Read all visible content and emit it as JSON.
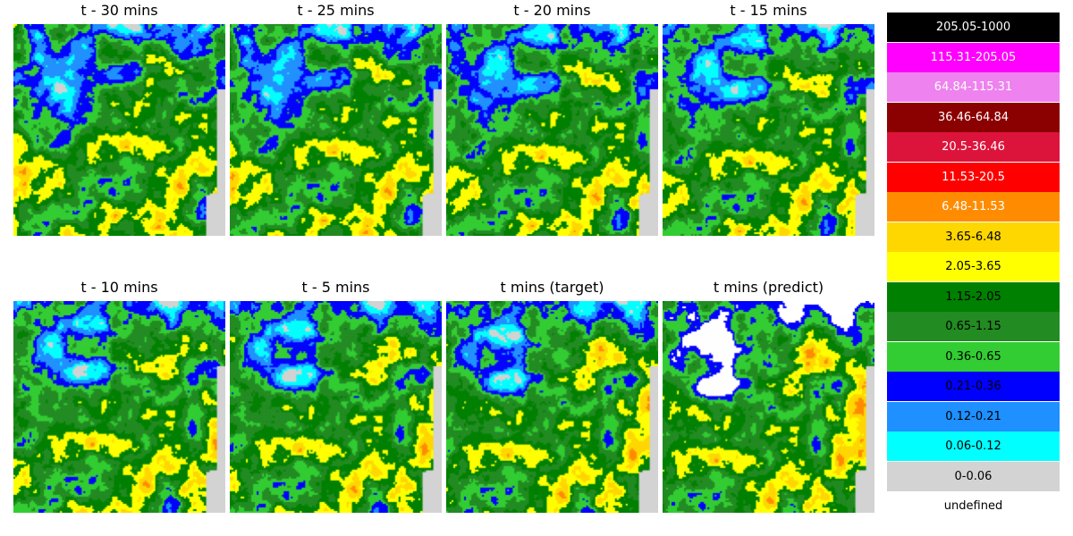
{
  "panels": [
    {
      "title": "t - 30 mins",
      "variant": 0
    },
    {
      "title": "t - 25 mins",
      "variant": 1
    },
    {
      "title": "t - 20 mins",
      "variant": 2
    },
    {
      "title": "t - 15 mins",
      "variant": 3
    },
    {
      "title": "t - 10 mins",
      "variant": 4
    },
    {
      "title": "t - 5 mins",
      "variant": 5
    },
    {
      "title": "t mins (target)",
      "variant": 6
    },
    {
      "title": "t mins (predict)",
      "variant": 7,
      "predict": true
    }
  ],
  "legend": {
    "items": [
      {
        "label": "205.05-1000",
        "color": "#000000",
        "text_color": "#ffffff"
      },
      {
        "label": "115.31-205.05",
        "color": "#ff00ff",
        "text_color": "#ffffff"
      },
      {
        "label": "64.84-115.31",
        "color": "#ee82ee",
        "text_color": "#ffffff"
      },
      {
        "label": "36.46-64.84",
        "color": "#8b0000",
        "text_color": "#ffffff"
      },
      {
        "label": "20.5-36.46",
        "color": "#dc143c",
        "text_color": "#ffffff"
      },
      {
        "label": "11.53-20.5",
        "color": "#ff0000",
        "text_color": "#ffffff"
      },
      {
        "label": "6.48-11.53",
        "color": "#ff8c00",
        "text_color": "#ffffff"
      },
      {
        "label": "3.65-6.48",
        "color": "#ffd700",
        "text_color": "#000000"
      },
      {
        "label": "2.05-3.65",
        "color": "#ffff00",
        "text_color": "#000000"
      },
      {
        "label": "1.15-2.05",
        "color": "#008000",
        "text_color": "#000000"
      },
      {
        "label": "0.65-1.15",
        "color": "#228b22",
        "text_color": "#000000"
      },
      {
        "label": "0.36-0.65",
        "color": "#32cd32",
        "text_color": "#000000"
      },
      {
        "label": "0.21-0.36",
        "color": "#0000ff",
        "text_color": "#000000"
      },
      {
        "label": "0.12-0.21",
        "color": "#1e90ff",
        "text_color": "#000000"
      },
      {
        "label": "0.06-0.12",
        "color": "#00ffff",
        "text_color": "#000000"
      },
      {
        "label": "0-0.06",
        "color": "#d3d3d3",
        "text_color": "#000000"
      }
    ],
    "undefined_label": "undefined",
    "undefined_color": "#ffffff"
  },
  "chart_data": {
    "type": "heatmap",
    "description_units": "rain-rate classes",
    "frames": [
      "t - 30 mins",
      "t - 25 mins",
      "t - 20 mins",
      "t - 15 mins",
      "t - 10 mins",
      "t - 5 mins",
      "t mins (target)",
      "t mins (predict)"
    ],
    "classes": [
      "205.05-1000",
      "115.31-205.05",
      "64.84-115.31",
      "36.46-64.84",
      "20.5-36.46",
      "11.53-20.5",
      "6.48-11.53",
      "3.65-6.48",
      "2.05-3.65",
      "1.15-2.05",
      "0.65-1.15",
      "0.36-0.65",
      "0.21-0.36",
      "0.12-0.21",
      "0.06-0.12",
      "0-0.06",
      "undefined"
    ]
  }
}
